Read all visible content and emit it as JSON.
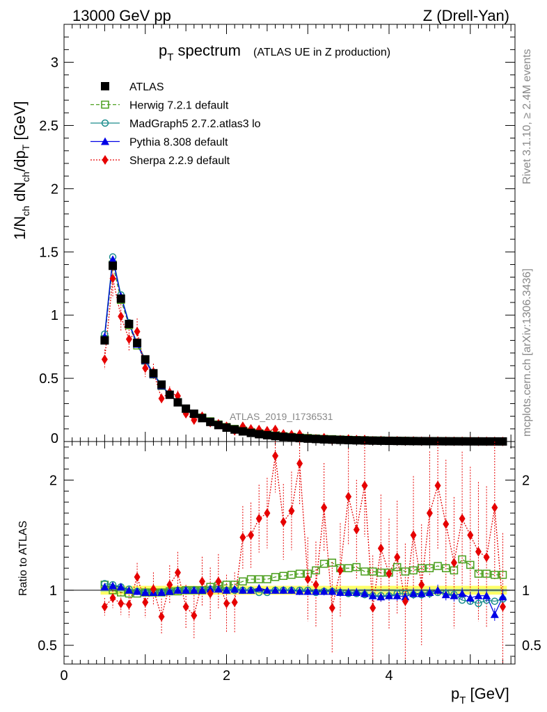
{
  "header": {
    "energy": "13000 GeV pp",
    "process": "Z (Drell-Yan)"
  },
  "side_text": {
    "rivet": "Rivet 3.1.10, ≥ 2.4M events",
    "mcplots": "mcplots.cern.ch [arXiv:1306.3436]"
  },
  "analysis_id": "ATLAS_2019_I1736531",
  "chart_data": [
    {
      "type": "scatter",
      "panel": "main",
      "title": "p",
      "title_sub": "T",
      "title_rest": " spectrum",
      "subtitle": "(ATLAS UE in Z production)",
      "ylabel": "1/N_ch dN_ch/dp_T [GeV]",
      "xlim": [
        0,
        5.55
      ],
      "ylim": [
        0,
        3.3
      ],
      "yticks": [
        "0.5",
        "1",
        "1.5",
        "2",
        "2.5",
        "3"
      ],
      "ytick_values": [
        0.5,
        1,
        1.5,
        2,
        2.5,
        3
      ],
      "partial_zero_label": "0",
      "legend_position": "top-left",
      "x": [
        0.5,
        0.6,
        0.7,
        0.8,
        0.9,
        1.0,
        1.1,
        1.2,
        1.3,
        1.4,
        1.5,
        1.6,
        1.7,
        1.8,
        1.9,
        2.0,
        2.1,
        2.2,
        2.3,
        2.4,
        2.5,
        2.6,
        2.7,
        2.8,
        2.9,
        3.0,
        3.1,
        3.2,
        3.3,
        3.4,
        3.5,
        3.6,
        3.7,
        3.8,
        3.9,
        4.0,
        4.1,
        4.2,
        4.3,
        4.4,
        4.5,
        4.6,
        4.7,
        4.8,
        4.9,
        5.0,
        5.1,
        5.2,
        5.3,
        5.4
      ],
      "series": [
        {
          "name": "ATLAS",
          "color": "#000000",
          "marker": "filled-square",
          "values": [
            0.8,
            1.39,
            1.13,
            0.93,
            0.78,
            0.65,
            0.54,
            0.45,
            0.37,
            0.31,
            0.26,
            0.22,
            0.185,
            0.155,
            0.13,
            0.11,
            0.095,
            0.08,
            0.068,
            0.058,
            0.05,
            0.043,
            0.037,
            0.032,
            0.027,
            0.023,
            0.02,
            0.017,
            0.015,
            0.013,
            0.011,
            0.0095,
            0.0082,
            0.007,
            0.006,
            0.0052,
            0.0045,
            0.0039,
            0.0033,
            0.0029,
            0.0025,
            0.0022,
            0.0019,
            0.0016,
            0.0014,
            0.0012,
            0.00105,
            0.0009,
            0.0008,
            0.0007
          ]
        },
        {
          "name": "Herwig 7.2.1 default",
          "color": "#4a9e1c",
          "marker": "open-square",
          "line": "dashed",
          "values": [
            0.81,
            1.4,
            1.12,
            0.92,
            0.76,
            0.64,
            0.53,
            0.44,
            0.37,
            0.31,
            0.26,
            0.22,
            0.19,
            0.16,
            0.135,
            0.115,
            0.1,
            0.087,
            0.075,
            0.065,
            0.056,
            0.048,
            0.042,
            0.037,
            0.032,
            0.028,
            0.024,
            0.021,
            0.019,
            0.016,
            0.014,
            0.012,
            0.011,
            0.009,
            0.0083,
            0.0072,
            0.0063,
            0.0055,
            0.0048,
            0.0042,
            0.0037,
            0.0033,
            0.0028,
            0.0024,
            0.0021,
            0.0018,
            0.0016,
            0.0014,
            0.0012,
            0.001
          ]
        },
        {
          "name": "MadGraph5 2.7.2.atlas3 lo",
          "color": "#1a8c8c",
          "marker": "open-circle",
          "line": "solid",
          "values": [
            0.85,
            1.46,
            1.16,
            0.94,
            0.78,
            0.65,
            0.54,
            0.45,
            0.37,
            0.31,
            0.26,
            0.22,
            0.186,
            0.156,
            0.131,
            0.11,
            0.095,
            0.08,
            0.068,
            0.057,
            0.049,
            0.043,
            0.037,
            0.032,
            0.027,
            0.023,
            0.02,
            0.017,
            0.015,
            0.013,
            0.011,
            0.0095,
            0.008,
            0.0068,
            0.0058,
            0.005,
            0.0043,
            0.0037,
            0.0032,
            0.0028,
            0.0024,
            0.0021,
            0.0018,
            0.0015,
            0.0013,
            0.0011,
            0.001,
            0.00085,
            0.0007,
            0.00065
          ]
        },
        {
          "name": "Pythia 8.308 default",
          "color": "#0000e6",
          "marker": "filled-triangle",
          "line": "solid",
          "values": [
            0.83,
            1.44,
            1.15,
            0.93,
            0.77,
            0.64,
            0.53,
            0.44,
            0.37,
            0.31,
            0.26,
            0.22,
            0.186,
            0.156,
            0.131,
            0.11,
            0.096,
            0.08,
            0.068,
            0.059,
            0.05,
            0.043,
            0.037,
            0.032,
            0.027,
            0.023,
            0.02,
            0.017,
            0.015,
            0.013,
            0.011,
            0.0095,
            0.008,
            0.0066,
            0.0056,
            0.005,
            0.0043,
            0.0037,
            0.0032,
            0.0028,
            0.0024,
            0.0021,
            0.0018,
            0.0016,
            0.0013,
            0.0011,
            0.001,
            0.0007,
            0.0007,
            0.00065
          ]
        },
        {
          "name": "Sherpa 2.2.9 default",
          "color": "#e60000",
          "marker": "filled-diamond",
          "line": "dotted",
          "values": [
            0.65,
            1.29,
            0.99,
            0.81,
            0.87,
            0.58,
            0.55,
            0.34,
            0.39,
            0.36,
            0.22,
            0.17,
            0.2,
            0.15,
            0.14,
            0.12,
            0.085,
            0.12,
            0.1,
            0.095,
            0.085,
            0.095,
            0.06,
            0.055,
            0.058,
            0.025,
            0.021,
            0.03,
            0.012,
            0.015,
            0.02,
            0.015,
            0.016,
            0.006,
            0.008,
            0.006,
            0.006,
            0.0035,
            0.005,
            0.003,
            0.004,
            0.0042,
            0.003,
            0.002,
            0.002,
            0.0018,
            0.0014,
            0.0012,
            0.0014,
            0.0006
          ]
        }
      ]
    },
    {
      "type": "scatter",
      "panel": "ratio",
      "ylabel": "Ratio to ATLAS",
      "xlabel": "p_T [GeV]",
      "xlim": [
        0,
        5.55
      ],
      "ylim": [
        0.33,
        2.35
      ],
      "xticks": [
        "0",
        "2",
        "4"
      ],
      "xtick_values": [
        0,
        2,
        4
      ],
      "yticks": [
        "0.5",
        "1",
        "2"
      ],
      "ytick_values": [
        0.5,
        1,
        2
      ],
      "ratio_series": [
        {
          "name": "Herwig 7.2.1 default",
          "values": [
            1.05,
            1.0,
            0.98,
            0.97,
            0.97,
            0.98,
            0.98,
            0.98,
            0.99,
            0.99,
            1.0,
            1.0,
            1.0,
            1.03,
            1.04,
            1.05,
            1.05,
            1.08,
            1.1,
            1.1,
            1.1,
            1.12,
            1.13,
            1.14,
            1.15,
            1.15,
            1.18,
            1.24,
            1.25,
            1.2,
            1.2,
            1.21,
            1.17,
            1.17,
            1.16,
            1.16,
            1.21,
            1.17,
            1.18,
            1.2,
            1.2,
            1.22,
            1.2,
            1.18,
            1.28,
            1.23,
            1.15,
            1.15,
            1.14,
            1.14
          ]
        },
        {
          "name": "MadGraph5 2.7.2.atlas3 lo",
          "values": [
            1.06,
            1.05,
            1.03,
            1.01,
            0.99,
            0.98,
            0.98,
            0.98,
            0.99,
            1.0,
            1.0,
            1.0,
            1.0,
            1.01,
            1.01,
            1.0,
            1.0,
            1.0,
            1.0,
            0.98,
            0.98,
            1.0,
            1.0,
            1.0,
            1.0,
            1.0,
            0.98,
            0.99,
            0.99,
            0.98,
            0.97,
            0.97,
            0.96,
            0.95,
            0.95,
            0.95,
            0.97,
            0.97,
            0.96,
            0.96,
            0.97,
            0.98,
            0.97,
            0.96,
            0.91,
            0.9,
            0.88,
            0.91,
            0.9,
            0.92
          ]
        },
        {
          "name": "Pythia 8.308 default",
          "values": [
            1.03,
            1.04,
            1.03,
            1.0,
            0.99,
            0.98,
            0.98,
            0.98,
            0.99,
            1.0,
            1.0,
            1.0,
            1.0,
            1.01,
            1.01,
            1.0,
            1.01,
            1.0,
            1.0,
            1.02,
            1.0,
            1.0,
            1.0,
            1.0,
            0.99,
            0.99,
            0.99,
            0.99,
            0.99,
            0.98,
            0.98,
            0.98,
            0.97,
            0.95,
            0.94,
            0.95,
            0.95,
            0.94,
            0.97,
            0.97,
            0.98,
            1.0,
            0.96,
            0.95,
            0.97,
            0.93,
            0.95,
            0.95,
            0.78,
            0.94
          ]
        },
        {
          "name": "Sherpa 2.2.9 default",
          "values": [
            0.85,
            0.93,
            0.88,
            0.87,
            1.12,
            0.89,
            1.01,
            0.76,
            1.05,
            1.16,
            0.85,
            0.77,
            1.08,
            0.97,
            1.08,
            0.88,
            0.89,
            1.48,
            1.5,
            1.65,
            1.7,
            2.22,
            1.62,
            1.72,
            2.15,
            1.1,
            1.05,
            1.75,
            0.84,
            1.18,
            1.85,
            1.55,
            1.95,
            0.84,
            1.38,
            1.15,
            1.3,
            0.9,
            1.5,
            1.05,
            1.7,
            1.95,
            1.6,
            1.25,
            1.65,
            1.5,
            1.35,
            1.3,
            1.75,
            0.85
          ]
        }
      ],
      "band_half_width": 0.025,
      "band_color": "#ffff66",
      "band_inner_color": "#aaddaa"
    }
  ]
}
